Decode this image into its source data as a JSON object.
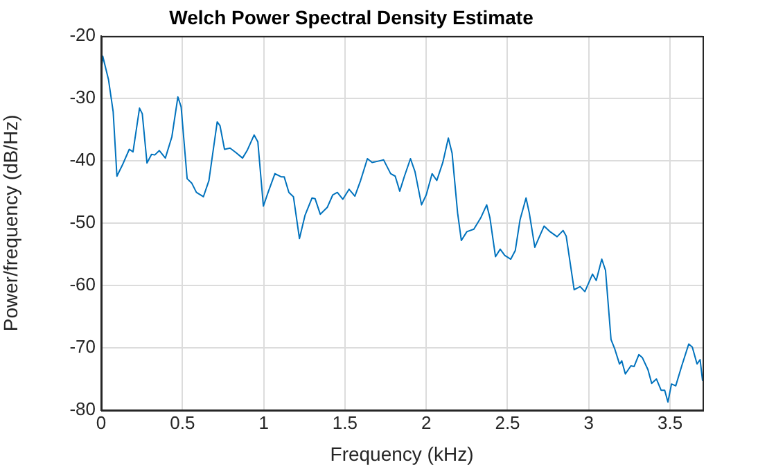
{
  "chart_data": {
    "type": "line",
    "title": "Welch Power Spectral Density Estimate",
    "xlabel": "Frequency (kHz)",
    "ylabel": "Power/frequency (dB/Hz)",
    "xlim": [
      0,
      3.7
    ],
    "xticks": [
      0,
      0.5,
      1,
      1.5,
      2,
      2.5,
      3,
      3.5
    ],
    "ylim": [
      -80,
      -20
    ],
    "yticks": [
      -80,
      -70,
      -60,
      -50,
      -40,
      -30,
      -20
    ],
    "grid": true,
    "legend": false,
    "marker": "none",
    "line_style": "solid",
    "series": [
      {
        "color": "#0072bd",
        "x": [
          0,
          0.01,
          0.045,
          0.074,
          0.097,
          0.131,
          0.173,
          0.196,
          0.236,
          0.253,
          0.282,
          0.31,
          0.33,
          0.358,
          0.395,
          0.435,
          0.472,
          0.492,
          0.529,
          0.557,
          0.586,
          0.629,
          0.663,
          0.714,
          0.731,
          0.759,
          0.793,
          0.828,
          0.87,
          0.898,
          0.941,
          0.964,
          0.998,
          1.027,
          1.069,
          1.107,
          1.126,
          1.155,
          1.183,
          1.22,
          1.254,
          1.297,
          1.316,
          1.348,
          1.391,
          1.425,
          1.453,
          1.487,
          1.525,
          1.561,
          1.596,
          1.638,
          1.667,
          1.704,
          1.738,
          1.781,
          1.809,
          1.837,
          1.866,
          1.903,
          1.931,
          1.971,
          2.0,
          2.036,
          2.065,
          2.102,
          2.136,
          2.159,
          2.193,
          2.216,
          2.25,
          2.293,
          2.335,
          2.372,
          2.392,
          2.426,
          2.455,
          2.483,
          2.52,
          2.548,
          2.577,
          2.614,
          2.634,
          2.668,
          2.691,
          2.725,
          2.762,
          2.805,
          2.842,
          2.861,
          2.91,
          2.947,
          2.976,
          3.023,
          3.046,
          3.08,
          3.103,
          3.137,
          3.16,
          3.189,
          3.203,
          3.225,
          3.259,
          3.279,
          3.308,
          3.33,
          3.364,
          3.387,
          3.416,
          3.445,
          3.467,
          3.487,
          3.509,
          3.535,
          3.572,
          3.615,
          3.637,
          3.666,
          3.685,
          3.7
        ],
        "values": [
          -25.9,
          -23.3,
          -27.0,
          -32.2,
          -42.5,
          -40.7,
          -38.2,
          -38.6,
          -31.6,
          -32.5,
          -40.4,
          -39.0,
          -39.1,
          -38.4,
          -39.6,
          -36.2,
          -29.8,
          -31.4,
          -42.9,
          -43.6,
          -45.1,
          -45.8,
          -43.2,
          -33.8,
          -34.4,
          -38.2,
          -38.0,
          -38.7,
          -39.6,
          -38.4,
          -35.9,
          -37.0,
          -47.3,
          -45.1,
          -42.1,
          -42.6,
          -42.6,
          -45.1,
          -45.8,
          -52.5,
          -48.8,
          -46.0,
          -46.1,
          -48.6,
          -47.5,
          -45.5,
          -45.1,
          -46.2,
          -44.6,
          -45.7,
          -43.2,
          -39.7,
          -40.3,
          -40.1,
          -39.9,
          -42.1,
          -42.5,
          -44.9,
          -42.5,
          -39.7,
          -41.8,
          -47.1,
          -45.5,
          -42.1,
          -43.2,
          -40.3,
          -36.4,
          -38.8,
          -48.4,
          -52.8,
          -51.4,
          -51.0,
          -49.2,
          -47.1,
          -49.2,
          -55.4,
          -54.2,
          -55.2,
          -55.8,
          -54.4,
          -49.5,
          -46.0,
          -48.4,
          -53.9,
          -52.5,
          -50.5,
          -51.4,
          -52.2,
          -51.2,
          -52.1,
          -60.7,
          -60.2,
          -61.0,
          -58.2,
          -59.2,
          -55.8,
          -57.6,
          -68.7,
          -70.2,
          -72.6,
          -72.1,
          -74.2,
          -72.9,
          -73.0,
          -71.1,
          -71.6,
          -73.5,
          -75.7,
          -75.0,
          -76.8,
          -76.8,
          -78.7,
          -75.8,
          -76.1,
          -72.9,
          -69.4,
          -69.9,
          -72.6,
          -71.9,
          -75.3
        ]
      }
    ]
  }
}
